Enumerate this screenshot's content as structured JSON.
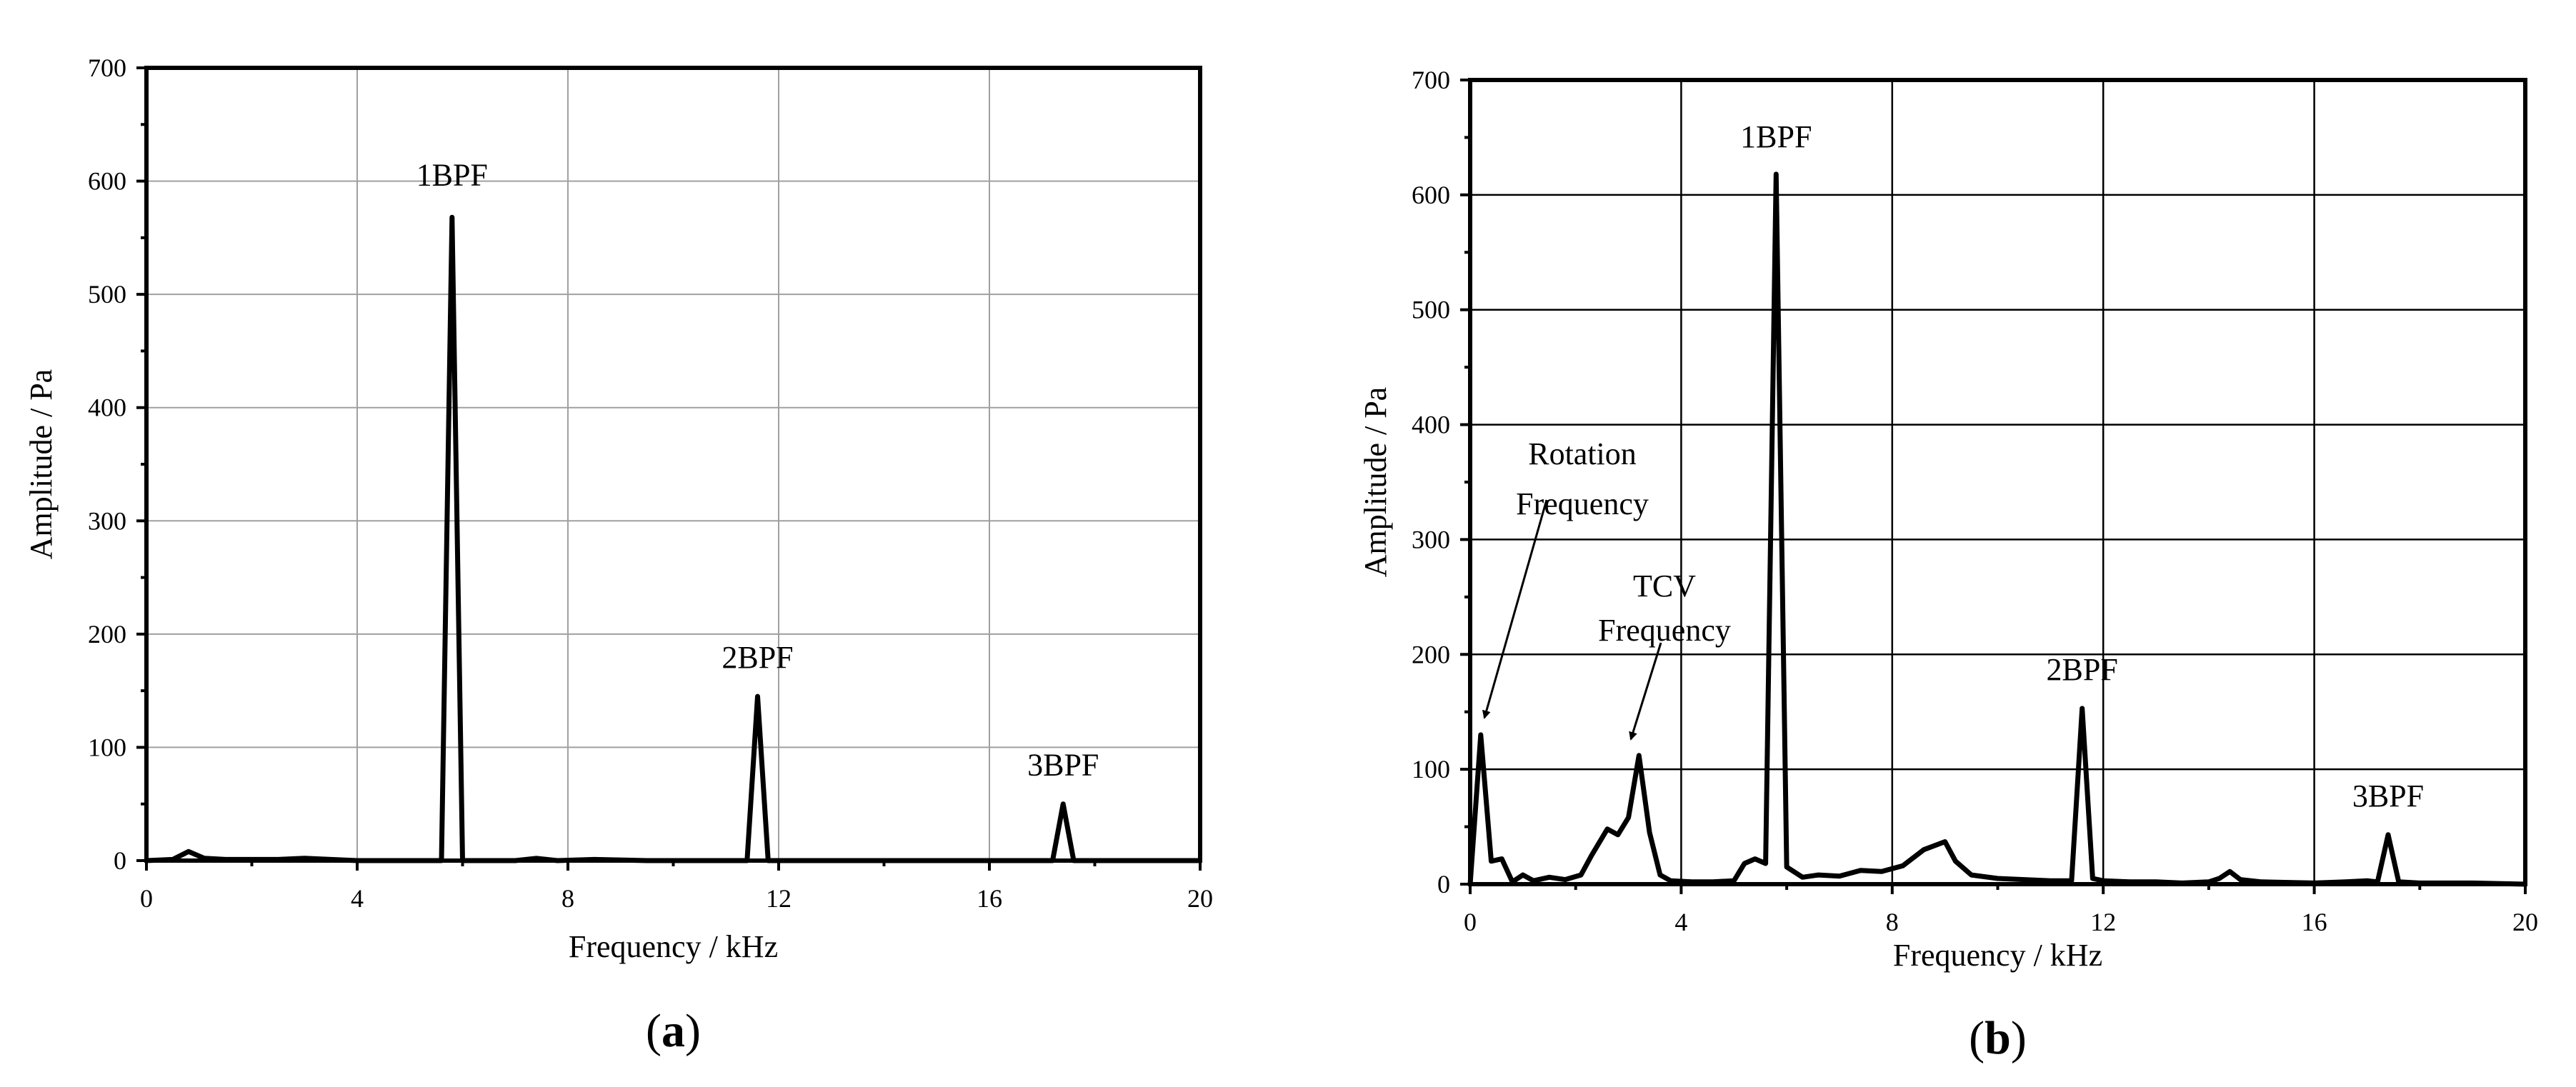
{
  "panels": [
    {
      "label": "(a)",
      "label_parts": {
        "open": "(",
        "letter": "a",
        "close": ")"
      },
      "xlabel": "Frequency / kHz",
      "ylabel": "Amplitude / Pa",
      "grid_color": "#a0a0a0"
    },
    {
      "label": "(b)",
      "label_parts": {
        "open": "(",
        "letter": "b",
        "close": ")"
      },
      "xlabel": "Frequency / kHz",
      "ylabel": "Amplitude / Pa",
      "grid_color": "#000000"
    }
  ],
  "chart_data": [
    {
      "type": "line",
      "title": "",
      "xlabel": "Frequency / kHz",
      "ylabel": "Amplitude / Pa",
      "xlim": [
        0,
        20
      ],
      "ylim": [
        0,
        700
      ],
      "xticks": [
        0,
        4,
        8,
        12,
        16,
        20
      ],
      "yticks": [
        0,
        100,
        200,
        300,
        400,
        500,
        600,
        700
      ],
      "grid": true,
      "line_color": "#000000",
      "series": [
        {
          "x": [
            0,
            0.5,
            0.8,
            1.1,
            1.5,
            2.0,
            2.5,
            3.0,
            3.5,
            4.0,
            5.0,
            5.6,
            5.8,
            6.0,
            6.5,
            7.0,
            7.4,
            7.8,
            8.5,
            9.5,
            10.5,
            11.4,
            11.6,
            11.8,
            12.5,
            14.0,
            16.0,
            17.2,
            17.4,
            17.6,
            18.5,
            20.0
          ],
          "y": [
            0,
            1,
            8,
            2,
            1,
            1,
            1,
            2,
            1,
            0,
            0,
            0,
            568,
            0,
            0,
            0,
            2,
            0,
            1,
            0,
            0,
            0,
            145,
            0,
            0,
            0,
            0,
            0,
            50,
            0,
            0,
            0
          ]
        }
      ],
      "annotations": [
        {
          "text": "1BPF",
          "x": 5.8,
          "y": 568
        },
        {
          "text": "2BPF",
          "x": 11.6,
          "y": 145
        },
        {
          "text": "3BPF",
          "x": 17.4,
          "y": 50
        }
      ]
    },
    {
      "type": "line",
      "title": "",
      "xlabel": "Frequency / kHz",
      "ylabel": "Amplitude / Pa",
      "xlim": [
        0,
        20
      ],
      "ylim": [
        0,
        700
      ],
      "xticks": [
        0,
        4,
        8,
        12,
        16,
        20
      ],
      "yticks": [
        0,
        100,
        200,
        300,
        400,
        500,
        600,
        700
      ],
      "grid": true,
      "line_color": "#000000",
      "series": [
        {
          "x": [
            0,
            0.2,
            0.4,
            0.6,
            0.8,
            1.0,
            1.2,
            1.5,
            1.8,
            2.1,
            2.3,
            2.6,
            2.8,
            3.0,
            3.2,
            3.4,
            3.6,
            3.8,
            4.2,
            4.6,
            5.0,
            5.2,
            5.4,
            5.6,
            5.8,
            6.0,
            6.3,
            6.6,
            7.0,
            7.4,
            7.8,
            8.2,
            8.6,
            9.0,
            9.2,
            9.5,
            10.0,
            10.5,
            11.0,
            11.4,
            11.6,
            11.8,
            12.0,
            12.5,
            13.0,
            13.5,
            14.0,
            14.2,
            14.4,
            14.6,
            15.0,
            16.0,
            16.6,
            17.0,
            17.2,
            17.4,
            17.6,
            18.0,
            19.0,
            20.0
          ],
          "y": [
            0,
            130,
            20,
            22,
            2,
            8,
            3,
            6,
            4,
            8,
            25,
            48,
            43,
            58,
            112,
            45,
            8,
            3,
            2,
            2,
            3,
            18,
            22,
            18,
            618,
            15,
            6,
            8,
            7,
            12,
            11,
            16,
            30,
            37,
            20,
            8,
            5,
            4,
            3,
            3,
            153,
            5,
            3,
            2,
            2,
            1,
            2,
            5,
            11,
            4,
            2,
            1,
            2,
            3,
            2,
            43,
            2,
            1,
            1,
            0
          ]
        }
      ],
      "annotations": [
        {
          "text": "1BPF",
          "x": 5.8,
          "y": 618
        },
        {
          "text": "2BPF",
          "x": 11.6,
          "y": 153
        },
        {
          "text": "3BPF",
          "x": 17.4,
          "y": 43
        },
        {
          "text": [
            "Rotation",
            "Frequency"
          ],
          "x": 0.2,
          "y": 130
        },
        {
          "text": [
            "TCV",
            "Frequency"
          ],
          "x": 3.2,
          "y": 112
        }
      ]
    }
  ]
}
